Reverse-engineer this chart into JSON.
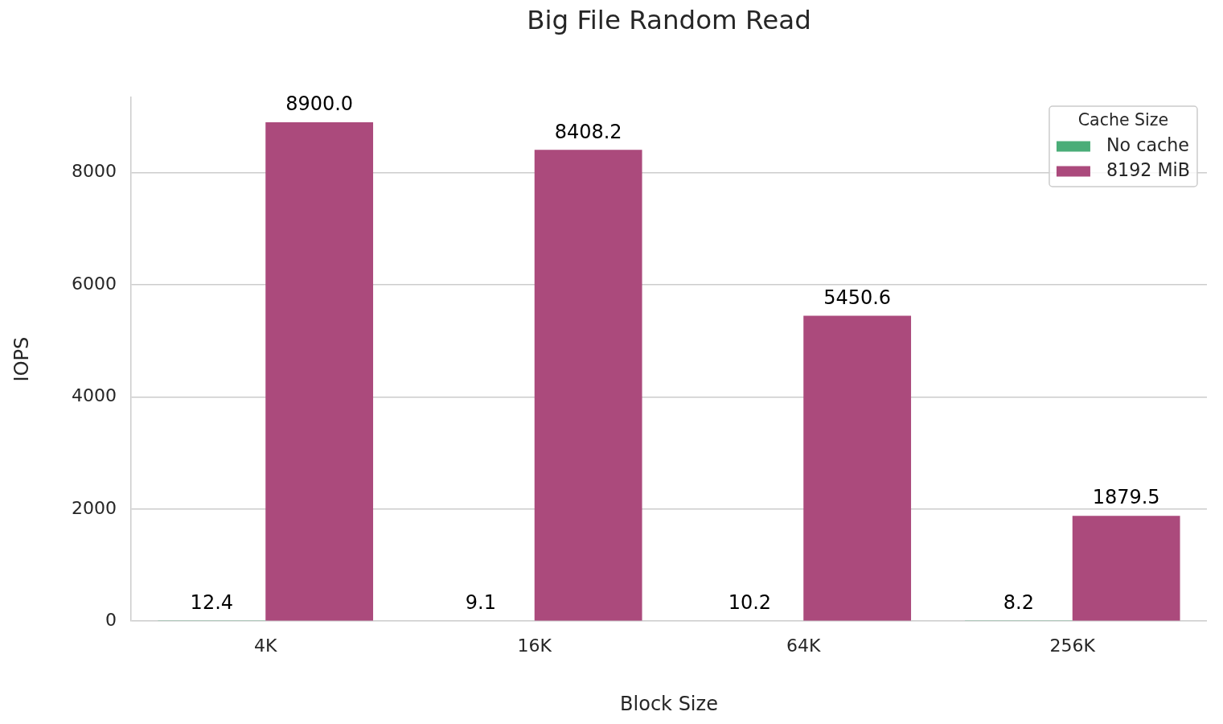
{
  "chart_data": {
    "type": "bar",
    "title": "Big File Random Read",
    "xlabel": "Block Size",
    "ylabel": "IOPS",
    "legend_title": "Cache Size",
    "categories": [
      "4K",
      "16K",
      "64K",
      "256K"
    ],
    "series": [
      {
        "name": "No cache",
        "color": "#4aad78",
        "values": [
          12.4,
          9.1,
          10.2,
          8.2
        ],
        "value_labels": [
          "12.4",
          "9.1",
          "10.2",
          "8.2"
        ]
      },
      {
        "name": "8192 MiB",
        "color": "#ab4a7c",
        "values": [
          8900.0,
          8408.2,
          5450.6,
          1879.5
        ],
        "value_labels": [
          "8900.0",
          "8408.2",
          "5450.6",
          "1879.5"
        ]
      }
    ],
    "ylim": [
      0,
      9345
    ],
    "yticks": [
      0,
      2000,
      4000,
      6000,
      8000
    ],
    "grid": "y",
    "legend": "top right"
  }
}
